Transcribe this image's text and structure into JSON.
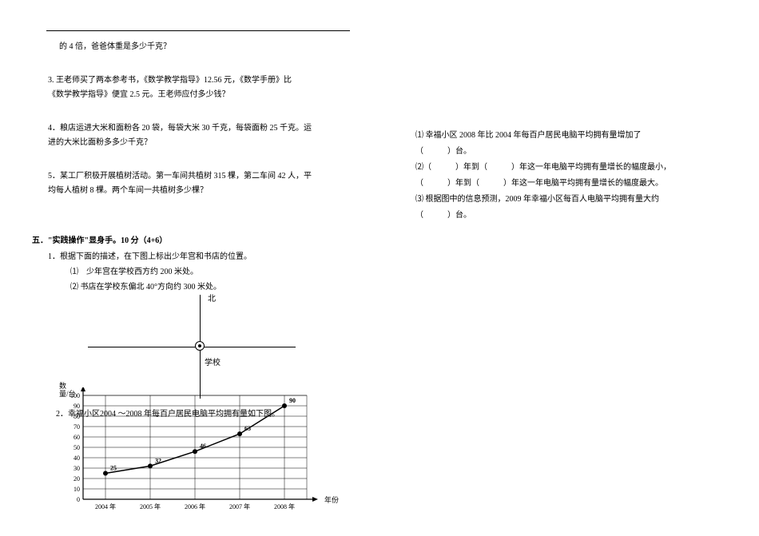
{
  "left": {
    "q_tail": "的 4 倍，爸爸体重是多少千克？",
    "q3": "3. 王老师买了两本参考书，《数学教学指导》12.56 元，《数学手册》比《数学教学指导》便宜 2.5 元。王老师应付多少钱？",
    "q4": "4．粮店运进大米和面粉各 20 袋，每袋大米 30 千克，每袋面粉 25 千克。运进的大米比面粉多多少千克？",
    "q5": "5．某工厂积极开展植树活动。第一车间共植树 315 棵，第二车间 42 人，平均每人植树 8 棵。两个车间一共植树多少棵？",
    "section5_title": "五．\"实践操作\"显身手。10 分（4+6）",
    "s5_q1": "1．根据下面的描述，在下图上标出少年宫和书店的位置。",
    "s5_q1_1": "⑴　少年宫在学校西方约 200 米处。",
    "s5_q1_2": "⑵ 书店在学校东偏北 40°方向约 300 米处。",
    "north": "北",
    "school": "学校",
    "s5_q2_overlay": "2．幸福小区2004 ～2008 年每百户居民电脑平均拥有量如下图。",
    "chart": {
      "type": "line",
      "y_label_line1": "数",
      "y_label_line2": "量/台",
      "x_axis_label": "年份",
      "categories": [
        "2004 年",
        "2005 年",
        "2006 年",
        "2007 年",
        "2008 年"
      ],
      "values": [
        25,
        32,
        46,
        63,
        90
      ],
      "point_labels": [
        "25",
        "32",
        "46",
        "63",
        "90"
      ],
      "ylim": [
        0,
        100
      ],
      "ytick_step": 10,
      "line_color": "#000000",
      "marker_color": "#000000",
      "grid_color": "#000000",
      "background_color": "#ffffff",
      "label_fontsize": 8,
      "axis_linewidth": 1,
      "marker_style": "circle",
      "marker_size": 3
    }
  },
  "right": {
    "item1": "⑴ 幸福小区 2008 年比 2004 年每百户居民电脑平均拥有量增加了（　　　）台。",
    "item2": "⑵（　　　）年到（　　　）年这一年电脑平均拥有量增长的幅度最小，（　　　）年到（　　　）年这一年电脑平均拥有量增长的幅度最大。",
    "item3": "⑶ 根据图中的信息预测，2009 年幸福小区每百人电脑平均拥有量大约（　　　）台。"
  }
}
